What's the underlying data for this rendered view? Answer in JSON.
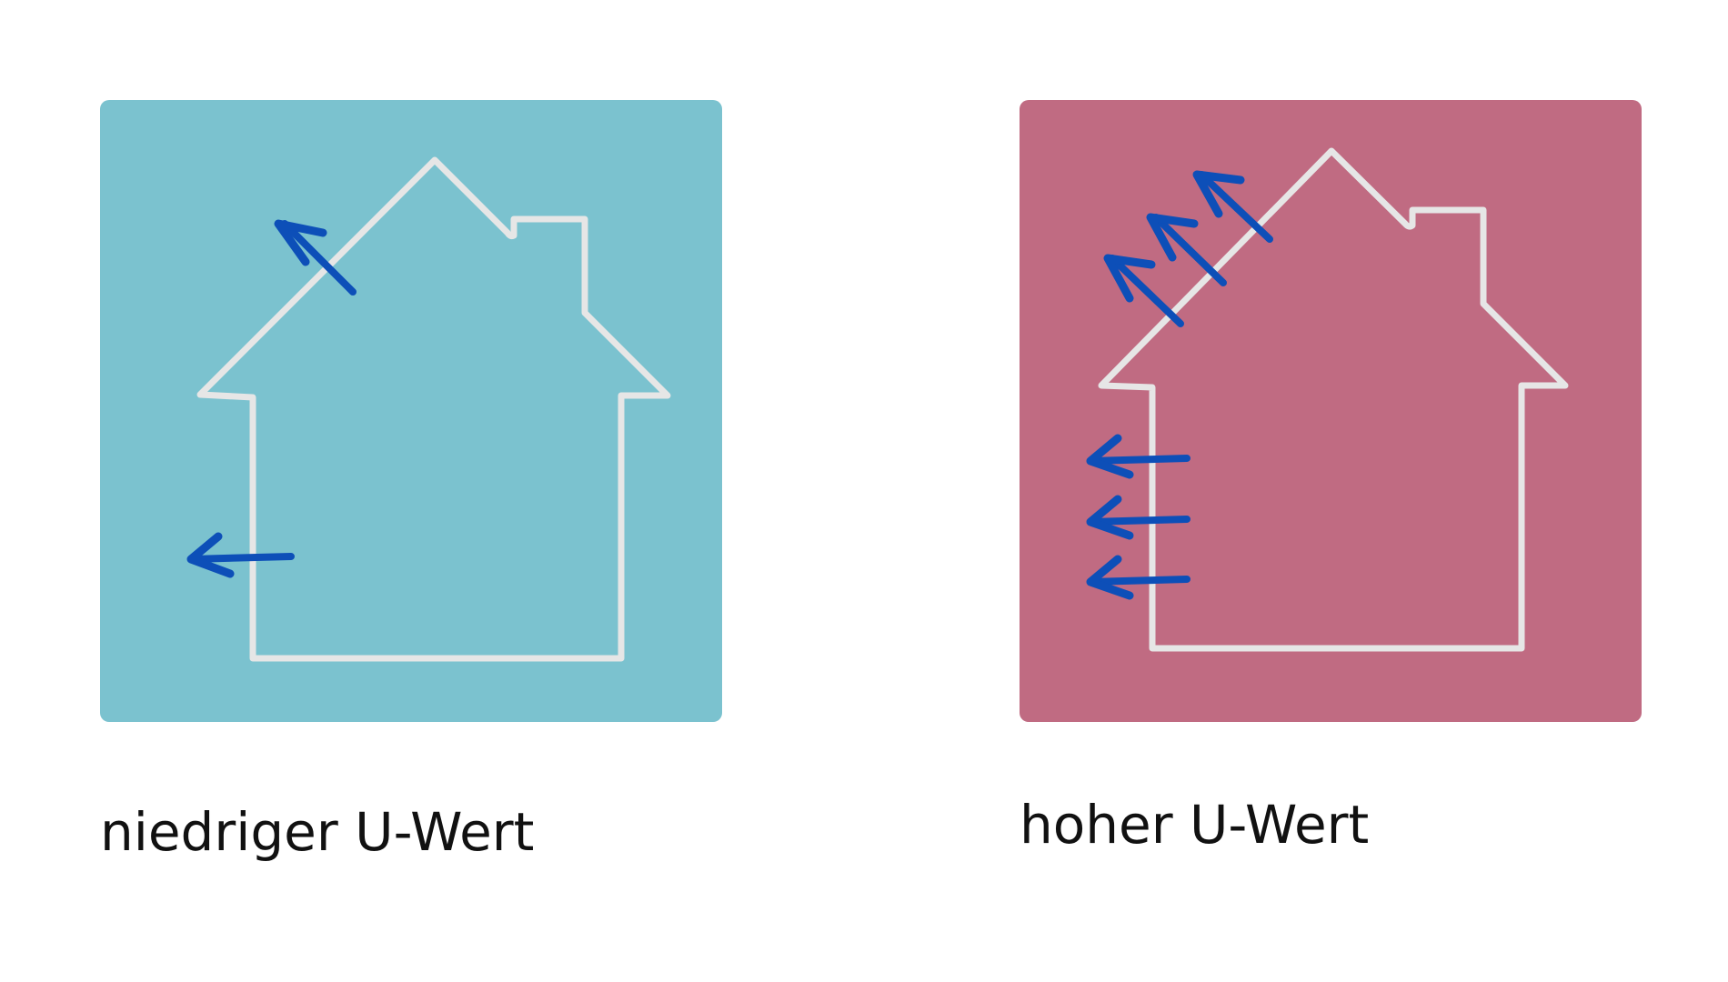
{
  "diagram": {
    "panels": [
      {
        "caption": "niedriger U-Wert",
        "background_color": "#7bc2cf",
        "heat_arrows": {
          "roof": 1,
          "wall": 1
        }
      },
      {
        "caption": "hoher U-Wert",
        "background_color": "#c06b82",
        "heat_arrows": {
          "roof": 3,
          "wall": 3
        }
      }
    ],
    "house_outline_color": "#e6e6e6",
    "arrow_color": "#0d4fb8"
  }
}
